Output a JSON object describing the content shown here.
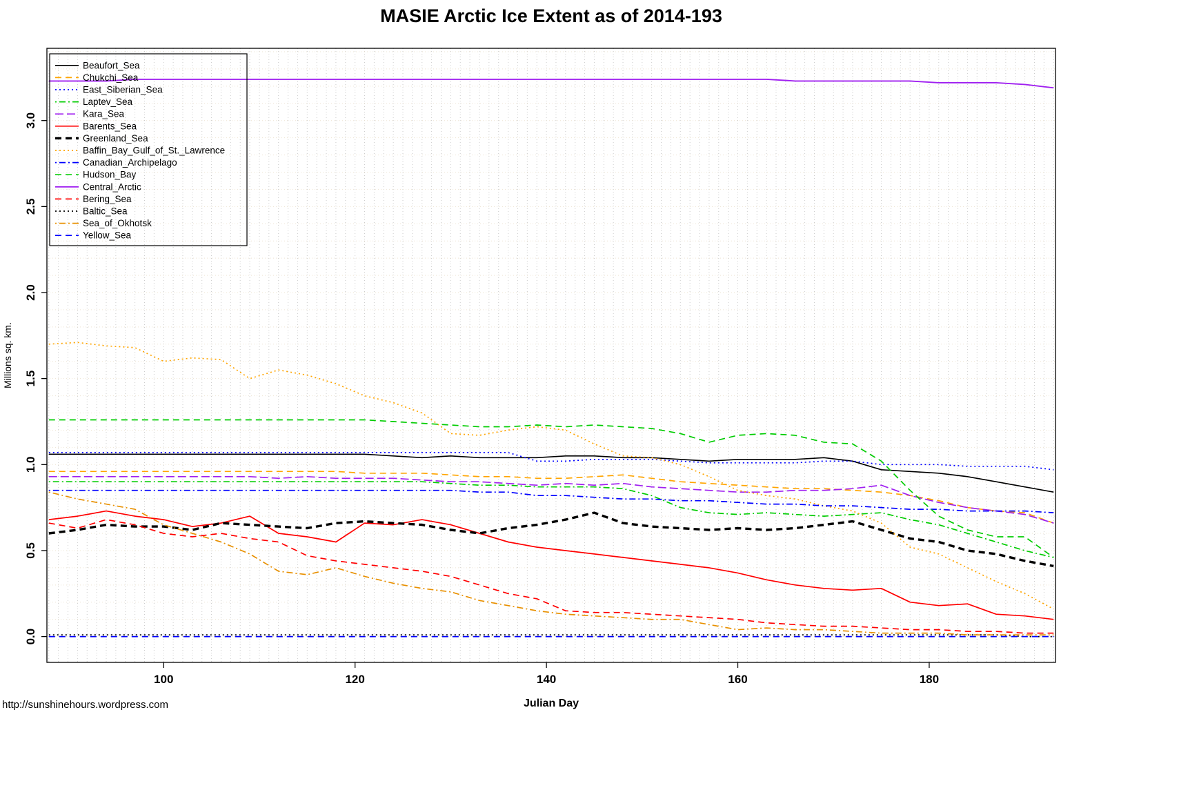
{
  "footer": {
    "url": "http://sunshinehours.wordpress.com"
  },
  "chart_data": {
    "type": "line",
    "title": "MASIE Arctic Ice Extent as of 2014-193",
    "xlabel": "Julian Day",
    "ylabel": "Millions sq. km.",
    "xlim": [
      87.8,
      193.2
    ],
    "ylim": [
      -0.15,
      3.42
    ],
    "xticks": [
      100,
      120,
      140,
      160,
      180
    ],
    "yticks": [
      0.0,
      0.5,
      1.0,
      1.5,
      2.0,
      2.5,
      3.0
    ],
    "ytick_labels": [
      "0.0",
      "0.5",
      "1.0",
      "1.5",
      "2.0",
      "2.5",
      "3.0"
    ],
    "grid": {
      "vertical_step": 1,
      "horizontal_step": 0.1,
      "v_color": "#cccccc",
      "h_color": "#ede4d2"
    },
    "legend_position": "top-left",
    "x": [
      88,
      91,
      94,
      97,
      100,
      103,
      106,
      109,
      112,
      115,
      118,
      121,
      124,
      127,
      130,
      133,
      136,
      139,
      142,
      145,
      148,
      151,
      154,
      157,
      160,
      163,
      166,
      169,
      172,
      175,
      178,
      181,
      184,
      187,
      190,
      193
    ],
    "series": [
      {
        "name": "Beaufort_Sea",
        "color": "#000000",
        "style": "solid",
        "width": 1.7,
        "values": [
          1.06,
          1.06,
          1.06,
          1.06,
          1.06,
          1.06,
          1.06,
          1.06,
          1.06,
          1.06,
          1.06,
          1.06,
          1.05,
          1.04,
          1.05,
          1.04,
          1.04,
          1.04,
          1.05,
          1.05,
          1.04,
          1.04,
          1.03,
          1.02,
          1.03,
          1.03,
          1.03,
          1.04,
          1.02,
          0.97,
          0.96,
          0.95,
          0.93,
          0.9,
          0.87,
          0.84
        ]
      },
      {
        "name": "Chukchi_Sea",
        "color": "#FFA500",
        "style": "dashed",
        "width": 1.7,
        "values": [
          0.96,
          0.96,
          0.96,
          0.96,
          0.96,
          0.96,
          0.96,
          0.96,
          0.96,
          0.96,
          0.96,
          0.95,
          0.95,
          0.95,
          0.94,
          0.93,
          0.93,
          0.92,
          0.92,
          0.93,
          0.94,
          0.92,
          0.9,
          0.89,
          0.88,
          0.87,
          0.86,
          0.86,
          0.85,
          0.84,
          0.82,
          0.79,
          0.75,
          0.73,
          0.72,
          0.66
        ]
      },
      {
        "name": "East_Siberian_Sea",
        "color": "#0000FF",
        "style": "dotted",
        "width": 1.7,
        "values": [
          1.07,
          1.07,
          1.07,
          1.07,
          1.07,
          1.07,
          1.07,
          1.07,
          1.07,
          1.07,
          1.07,
          1.07,
          1.07,
          1.07,
          1.07,
          1.07,
          1.07,
          1.02,
          1.02,
          1.03,
          1.03,
          1.03,
          1.02,
          1.01,
          1.01,
          1.01,
          1.01,
          1.02,
          1.02,
          1.0,
          1.0,
          1.0,
          0.99,
          0.99,
          0.99,
          0.97
        ]
      },
      {
        "name": "Laptev_Sea",
        "color": "#00CC00",
        "style": "dotdash",
        "width": 1.7,
        "values": [
          0.9,
          0.9,
          0.9,
          0.9,
          0.9,
          0.9,
          0.9,
          0.9,
          0.9,
          0.9,
          0.9,
          0.9,
          0.9,
          0.9,
          0.89,
          0.88,
          0.88,
          0.87,
          0.87,
          0.87,
          0.86,
          0.82,
          0.75,
          0.72,
          0.71,
          0.72,
          0.71,
          0.7,
          0.71,
          0.72,
          0.68,
          0.65,
          0.6,
          0.55,
          0.5,
          0.46
        ]
      },
      {
        "name": "Kara_Sea",
        "color": "#A020F0",
        "style": "longdash",
        "width": 1.7,
        "values": [
          0.93,
          0.93,
          0.93,
          0.93,
          0.93,
          0.93,
          0.93,
          0.93,
          0.92,
          0.93,
          0.92,
          0.92,
          0.92,
          0.91,
          0.9,
          0.9,
          0.89,
          0.88,
          0.89,
          0.88,
          0.89,
          0.87,
          0.86,
          0.85,
          0.84,
          0.84,
          0.85,
          0.85,
          0.86,
          0.88,
          0.82,
          0.78,
          0.75,
          0.73,
          0.71,
          0.66
        ]
      },
      {
        "name": "Barents_Sea",
        "color": "#FF0000",
        "style": "solid",
        "width": 1.7,
        "values": [
          0.68,
          0.7,
          0.73,
          0.7,
          0.68,
          0.64,
          0.66,
          0.7,
          0.6,
          0.58,
          0.55,
          0.66,
          0.65,
          0.68,
          0.65,
          0.6,
          0.55,
          0.52,
          0.5,
          0.48,
          0.46,
          0.44,
          0.42,
          0.4,
          0.37,
          0.33,
          0.3,
          0.28,
          0.27,
          0.28,
          0.2,
          0.18,
          0.19,
          0.13,
          0.12,
          0.1
        ]
      },
      {
        "name": "Greenland_Sea",
        "color": "#000000",
        "style": "dashed",
        "width": 3.4,
        "values": [
          0.6,
          0.62,
          0.65,
          0.64,
          0.64,
          0.62,
          0.66,
          0.65,
          0.64,
          0.63,
          0.66,
          0.67,
          0.66,
          0.65,
          0.62,
          0.6,
          0.63,
          0.65,
          0.68,
          0.72,
          0.66,
          0.64,
          0.63,
          0.62,
          0.63,
          0.62,
          0.63,
          0.65,
          0.67,
          0.62,
          0.57,
          0.55,
          0.5,
          0.48,
          0.44,
          0.41
        ]
      },
      {
        "name": "Baffin_Bay_Gulf_of_St._Lawrence",
        "color": "#FFA500",
        "style": "dotted",
        "width": 1.7,
        "values": [
          1.7,
          1.71,
          1.69,
          1.68,
          1.6,
          1.62,
          1.61,
          1.5,
          1.55,
          1.52,
          1.47,
          1.4,
          1.36,
          1.3,
          1.18,
          1.17,
          1.2,
          1.22,
          1.2,
          1.12,
          1.05,
          1.04,
          1.0,
          0.93,
          0.85,
          0.82,
          0.8,
          0.76,
          0.73,
          0.66,
          0.52,
          0.48,
          0.4,
          0.32,
          0.25,
          0.16
        ]
      },
      {
        "name": "Canadian_Archipelago",
        "color": "#0000FF",
        "style": "dotdash",
        "width": 1.7,
        "values": [
          0.85,
          0.85,
          0.85,
          0.85,
          0.85,
          0.85,
          0.85,
          0.85,
          0.85,
          0.85,
          0.85,
          0.85,
          0.85,
          0.85,
          0.85,
          0.84,
          0.84,
          0.82,
          0.82,
          0.81,
          0.8,
          0.8,
          0.79,
          0.79,
          0.78,
          0.77,
          0.77,
          0.76,
          0.76,
          0.75,
          0.74,
          0.74,
          0.73,
          0.73,
          0.73,
          0.72
        ]
      },
      {
        "name": "Hudson_Bay",
        "color": "#00CC00",
        "style": "dashed",
        "width": 1.7,
        "values": [
          1.26,
          1.26,
          1.26,
          1.26,
          1.26,
          1.26,
          1.26,
          1.26,
          1.26,
          1.26,
          1.26,
          1.26,
          1.25,
          1.24,
          1.23,
          1.22,
          1.22,
          1.23,
          1.22,
          1.23,
          1.22,
          1.21,
          1.18,
          1.13,
          1.17,
          1.18,
          1.17,
          1.13,
          1.12,
          1.02,
          0.85,
          0.7,
          0.62,
          0.58,
          0.58,
          0.46
        ]
      },
      {
        "name": "Central_Arctic",
        "color": "#A020F0",
        "style": "solid",
        "width": 1.9,
        "values": [
          3.23,
          3.23,
          3.23,
          3.24,
          3.24,
          3.24,
          3.24,
          3.24,
          3.24,
          3.24,
          3.24,
          3.24,
          3.24,
          3.24,
          3.24,
          3.24,
          3.24,
          3.24,
          3.24,
          3.24,
          3.24,
          3.24,
          3.24,
          3.24,
          3.24,
          3.24,
          3.23,
          3.23,
          3.23,
          3.23,
          3.23,
          3.22,
          3.22,
          3.22,
          3.21,
          3.19
        ]
      },
      {
        "name": "Bering_Sea",
        "color": "#FF0000",
        "style": "dashed",
        "width": 1.7,
        "values": [
          0.66,
          0.63,
          0.68,
          0.65,
          0.6,
          0.58,
          0.6,
          0.57,
          0.55,
          0.47,
          0.44,
          0.42,
          0.4,
          0.38,
          0.35,
          0.3,
          0.25,
          0.22,
          0.15,
          0.14,
          0.14,
          0.13,
          0.12,
          0.11,
          0.1,
          0.08,
          0.07,
          0.06,
          0.06,
          0.05,
          0.04,
          0.04,
          0.03,
          0.03,
          0.02,
          0.02
        ]
      },
      {
        "name": "Baltic_Sea",
        "color": "#000000",
        "style": "dotted",
        "width": 1.7,
        "values": [
          0.01,
          0.01,
          0.01,
          0.01,
          0.01,
          0.01,
          0.01,
          0.01,
          0.01,
          0.01,
          0.01,
          0.01,
          0.01,
          0.01,
          0.01,
          0.01,
          0.01,
          0.01,
          0.01,
          0.01,
          0.01,
          0.01,
          0.01,
          0.01,
          0.01,
          0.01,
          0.01,
          0.01,
          0.01,
          0.01,
          0.01,
          0.01,
          0.01,
          0.01,
          0.0,
          0.0
        ]
      },
      {
        "name": "Sea_of_Okhotsk",
        "color": "#E89000",
        "style": "dotdash",
        "width": 1.7,
        "values": [
          0.84,
          0.8,
          0.77,
          0.74,
          0.65,
          0.6,
          0.55,
          0.48,
          0.38,
          0.36,
          0.4,
          0.35,
          0.31,
          0.28,
          0.26,
          0.21,
          0.18,
          0.15,
          0.13,
          0.12,
          0.11,
          0.1,
          0.1,
          0.07,
          0.04,
          0.05,
          0.04,
          0.04,
          0.03,
          0.02,
          0.02,
          0.02,
          0.01,
          0.01,
          0.01,
          0.01
        ]
      },
      {
        "name": "Yellow_Sea",
        "color": "#0000FF",
        "style": "dashed",
        "width": 1.7,
        "values": [
          0.0,
          0.0,
          0.0,
          0.0,
          0.0,
          0.0,
          0.0,
          0.0,
          0.0,
          0.0,
          0.0,
          0.0,
          0.0,
          0.0,
          0.0,
          0.0,
          0.0,
          0.0,
          0.0,
          0.0,
          0.0,
          0.0,
          0.0,
          0.0,
          0.0,
          0.0,
          0.0,
          0.0,
          0.0,
          0.0,
          0.0,
          0.0,
          0.0,
          0.0,
          0.0,
          0.0
        ]
      }
    ]
  }
}
